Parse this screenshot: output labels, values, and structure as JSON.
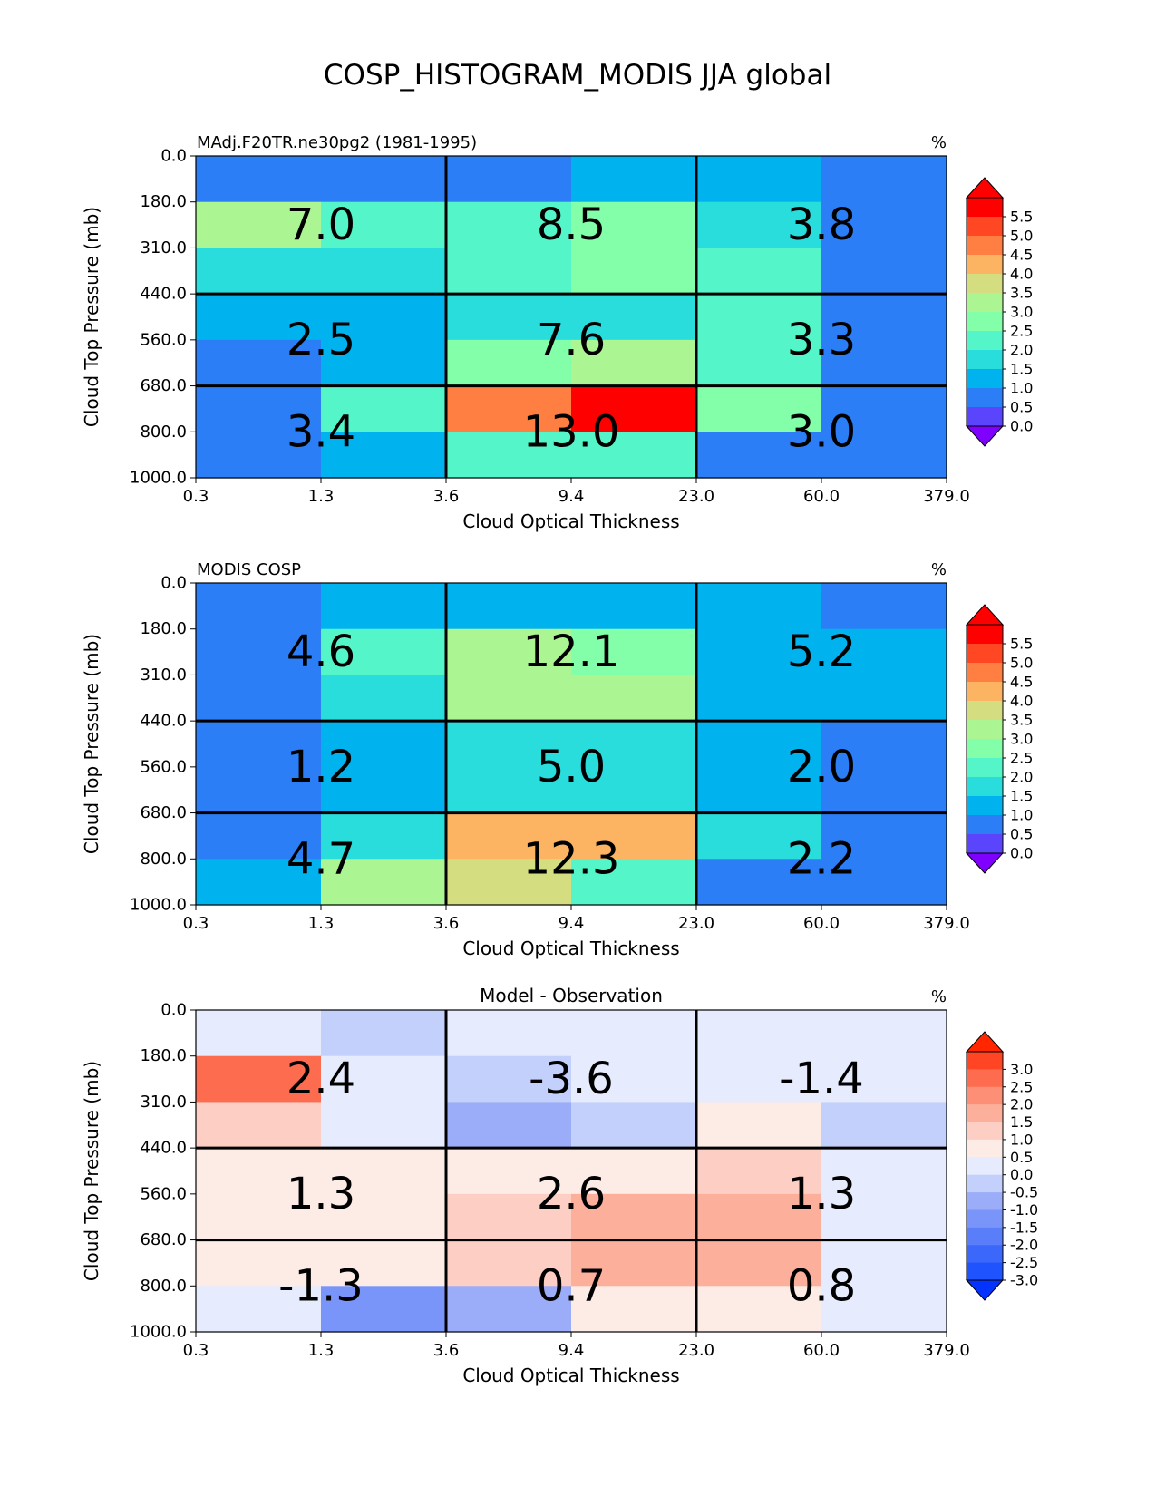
{
  "title": "COSP_HISTOGRAM_MODIS JJA global",
  "colors": {
    "rainbow": [
      "#5a45fd",
      "#2c7ef7",
      "#00b3ef",
      "#2adddd",
      "#54f6c9",
      "#82ffa8",
      "#abf592",
      "#d4dd80",
      "#fcb463",
      "#ff7e41",
      "#ff4823",
      "#ff0000"
    ],
    "rainbow_under": "#8000ff",
    "rainbow_over": "#ff0000",
    "diff": [
      "#1f53fd",
      "#3b68fb",
      "#5a7efa",
      "#7a95f9",
      "#9badf8",
      "#c2d0fb",
      "#e6ebfd",
      "#fdebe6",
      "#fdcfc4",
      "#fcb09b",
      "#fe8f77",
      "#fe6c50",
      "#ff4524"
    ],
    "diff_under": "#0433ff",
    "diff_over": "#ff2600"
  },
  "chart_data": [
    {
      "type": "heatmap",
      "title": "MAdj.F20TR.ne30pg2 (1981-1995)",
      "units": "%",
      "xlabel": "Cloud Optical Thickness",
      "ylabel": "Cloud Top Pressure (mb)",
      "x_ticks": [
        "0.3",
        "1.3",
        "3.6",
        "9.4",
        "23.0",
        "60.0",
        "379.0"
      ],
      "y_ticks": [
        "0.0",
        "180.0",
        "310.0",
        "440.0",
        "560.0",
        "680.0",
        "800.0",
        "1000.0"
      ],
      "colorbar": {
        "levels": [
          -0.25,
          0,
          0.5,
          1,
          1.5,
          2,
          2.5,
          3,
          3.5,
          4,
          4.5,
          5,
          5.5
        ],
        "tick_labels": [
          "5.5",
          "5.0",
          "4.5",
          "4.0",
          "3.5",
          "3.0",
          "2.5",
          "2.0",
          "1.5",
          "1.0",
          "0.5",
          "0.0"
        ],
        "extend": "both"
      },
      "values": [
        [
          0.3,
          0.3,
          0.3,
          0.8,
          0.8,
          0.3
        ],
        [
          2.6,
          1.7,
          1.8,
          2.1,
          1.4,
          0.3
        ],
        [
          1.3,
          1.3,
          1.8,
          2.1,
          1.7,
          0.3
        ],
        [
          0.8,
          0.8,
          1.3,
          1.4,
          1.7,
          0.3
        ],
        [
          0.3,
          0.8,
          2.1,
          2.7,
          1.7,
          0.3
        ],
        [
          0.3,
          1.7,
          4.2,
          5.2,
          2.1,
          0.3
        ],
        [
          0.3,
          0.8,
          1.7,
          1.8,
          0.3,
          0.3
        ]
      ],
      "block_sums": [
        [
          "7.0",
          "8.5",
          "3.8"
        ],
        [
          "2.5",
          "7.6",
          "3.3"
        ],
        [
          "3.4",
          "13.0",
          "3.0"
        ]
      ]
    },
    {
      "type": "heatmap",
      "title": "MODIS COSP",
      "units": "%",
      "xlabel": "Cloud Optical Thickness",
      "ylabel": "Cloud Top Pressure (mb)",
      "x_ticks": [
        "0.3",
        "1.3",
        "3.6",
        "9.4",
        "23.0",
        "60.0",
        "379.0"
      ],
      "y_ticks": [
        "0.0",
        "180.0",
        "310.0",
        "440.0",
        "560.0",
        "680.0",
        "800.0",
        "1000.0"
      ],
      "colorbar": {
        "levels": [
          -0.25,
          0,
          0.5,
          1,
          1.5,
          2,
          2.5,
          3,
          3.5,
          4,
          4.5,
          5,
          5.5
        ],
        "tick_labels": [
          "5.5",
          "5.0",
          "4.5",
          "4.0",
          "3.5",
          "3.0",
          "2.5",
          "2.0",
          "1.5",
          "1.0",
          "0.5",
          "0.0"
        ],
        "extend": "both"
      },
      "values": [
        [
          0.3,
          0.8,
          0.8,
          0.8,
          0.8,
          0.3
        ],
        [
          0.3,
          1.7,
          2.6,
          2.3,
          0.8,
          0.8
        ],
        [
          0.3,
          1.3,
          2.7,
          2.6,
          0.8,
          0.8
        ],
        [
          0.3,
          0.8,
          1.3,
          1.3,
          0.8,
          0.3
        ],
        [
          0.3,
          0.8,
          1.3,
          1.3,
          0.8,
          0.3
        ],
        [
          0.3,
          1.3,
          3.6,
          3.7,
          1.3,
          0.3
        ],
        [
          0.8,
          2.6,
          3.1,
          1.8,
          0.3,
          0.3
        ]
      ],
      "block_sums": [
        [
          "4.6",
          "12.1",
          "5.2"
        ],
        [
          "1.2",
          "5.0",
          "2.0"
        ],
        [
          "4.7",
          "12.3",
          "2.2"
        ]
      ]
    },
    {
      "type": "heatmap",
      "title": "Model - Observation",
      "units": "%",
      "xlabel": "Cloud Optical Thickness",
      "ylabel": "Cloud Top Pressure (mb)",
      "x_ticks": [
        "0.3",
        "1.3",
        "3.6",
        "9.4",
        "23.0",
        "60.0",
        "379.0"
      ],
      "y_ticks": [
        "0.0",
        "180.0",
        "310.0",
        "440.0",
        "560.0",
        "680.0",
        "800.0",
        "1000.0"
      ],
      "colorbar": {
        "levels": [
          -3.25,
          -3,
          -2.5,
          -2,
          -1.5,
          -1,
          -0.5,
          0,
          0.5,
          1,
          1.5,
          2,
          2.5,
          3
        ],
        "tick_labels": [
          "3.0",
          "2.5",
          "2.0",
          "1.5",
          "1.0",
          "0.5",
          "0.0",
          "-0.5",
          "-1.0",
          "-1.5",
          "-2.0",
          "-2.5",
          "-3.0"
        ],
        "extend": "both"
      },
      "values": [
        [
          -0.2,
          -0.7,
          -0.2,
          -0.2,
          -0.2,
          -0.2
        ],
        [
          2.2,
          -0.2,
          -0.7,
          -0.2,
          -0.2,
          -0.2
        ],
        [
          0.7,
          -0.2,
          -1.2,
          -0.7,
          0.2,
          -0.7
        ],
        [
          0.2,
          0.2,
          0.2,
          0.2,
          0.7,
          -0.2
        ],
        [
          0.2,
          0.2,
          0.7,
          1.2,
          1.2,
          -0.2
        ],
        [
          0.2,
          0.2,
          0.7,
          1.2,
          1.2,
          -0.2
        ],
        [
          -0.2,
          -1.7,
          -1.2,
          0.2,
          0.2,
          -0.2
        ]
      ],
      "block_sums": [
        [
          "2.4",
          "-3.6",
          "-1.4"
        ],
        [
          "1.3",
          "2.6",
          "1.3"
        ],
        [
          "-1.3",
          "0.7",
          "0.8"
        ]
      ]
    }
  ]
}
